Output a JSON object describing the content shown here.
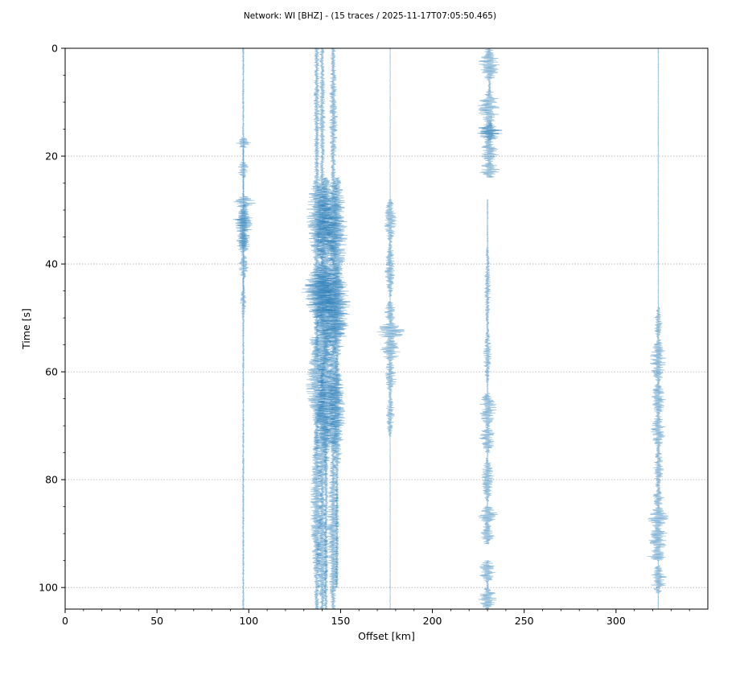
{
  "figure": {
    "title": "Network: WI [BHZ] - (15 traces / 2025-11-17T07:05:50.465)"
  },
  "chart_data": {
    "type": "seismic_record_section",
    "title": "Network: WI [BHZ] - (15 traces / 2025-11-17T07:05:50.465)",
    "xlabel": "Offset [km]",
    "ylabel": "Time [s]",
    "xlim": [
      0,
      350
    ],
    "ylim": [
      104,
      0
    ],
    "y_inverted": true,
    "grid": "horizontal-dotted",
    "x_ticks": [
      0,
      50,
      100,
      150,
      200,
      250,
      300
    ],
    "y_ticks": [
      0,
      20,
      40,
      60,
      80,
      100
    ],
    "trace_color": "#1f77b4",
    "dense_color": "#0b5f8f",
    "traces": [
      {
        "offset": 97,
        "start": 0,
        "end": 104,
        "amp": 0.4,
        "bursts": [
          [
            16.5,
            0.55,
            3.5,
            2
          ],
          [
            21,
            0.5,
            3,
            3
          ],
          [
            27.5,
            1,
            6,
            2
          ],
          [
            30,
            0.9,
            5,
            4
          ],
          [
            34,
            0.6,
            3.5,
            4
          ],
          [
            38,
            0.4,
            2.5,
            5
          ],
          [
            44,
            0.25,
            1.5,
            6
          ]
        ]
      },
      {
        "offset": 97.2,
        "start": 17,
        "end": 48,
        "amp": 0.0,
        "bursts": [
          [
            29,
            0.6,
            4,
            8
          ]
        ]
      },
      {
        "offset": 137,
        "start": 0,
        "end": 104,
        "amp": 1.2,
        "bursts": [
          [
            0,
            0.4,
            1.5,
            24
          ],
          [
            24,
            1.4,
            5,
            15
          ],
          [
            40,
            2.2,
            7,
            10
          ],
          [
            55,
            1.1,
            5,
            15
          ],
          [
            70,
            0.6,
            3,
            30
          ]
        ]
      },
      {
        "offset": 140,
        "start": 0,
        "end": 104,
        "amp": 1.2,
        "bursts": [
          [
            0,
            0.5,
            1.5,
            24
          ],
          [
            24,
            1.3,
            5,
            15
          ],
          [
            40,
            2.3,
            8,
            10
          ],
          [
            50,
            1.5,
            6,
            10
          ],
          [
            62,
            0.9,
            4,
            20
          ],
          [
            82,
            0.6,
            3,
            22
          ]
        ]
      },
      {
        "offset": 142,
        "start": 24,
        "end": 104,
        "amp": 1.0,
        "bursts": [
          [
            24,
            1.2,
            5,
            20
          ],
          [
            40,
            2.0,
            7,
            15
          ],
          [
            55,
            1.2,
            5,
            20
          ]
        ]
      },
      {
        "offset": 146,
        "start": 0,
        "end": 104,
        "amp": 1.2,
        "bursts": [
          [
            0,
            0.6,
            2,
            25
          ],
          [
            25,
            1.3,
            5,
            15
          ],
          [
            40,
            2.0,
            8,
            15
          ],
          [
            55,
            1.1,
            5,
            20
          ],
          [
            75,
            0.7,
            3,
            29
          ]
        ]
      },
      {
        "offset": 148,
        "start": 24,
        "end": 100,
        "amp": 0.9,
        "bursts": [
          [
            24,
            1.1,
            5,
            20
          ],
          [
            42,
            1.7,
            6,
            15
          ],
          [
            58,
            0.9,
            4,
            20
          ]
        ]
      },
      {
        "offset": 177,
        "start": 0,
        "end": 104,
        "amp": 0.15,
        "bursts": [
          [
            28,
            0.6,
            3,
            8
          ],
          [
            36,
            0.4,
            2.5,
            10
          ],
          [
            47,
            0.6,
            3,
            4
          ],
          [
            51,
            1.2,
            7,
            3
          ],
          [
            54,
            0.8,
            5,
            4
          ],
          [
            58,
            0.5,
            3,
            6
          ],
          [
            64,
            0.3,
            2,
            8
          ]
        ]
      },
      {
        "offset": 231,
        "start": 0,
        "end": 24,
        "amp": 0.8,
        "bursts": [
          [
            0,
            1.0,
            5,
            6
          ],
          [
            8,
            1.2,
            5.5,
            6
          ],
          [
            14,
            1.6,
            7,
            3
          ],
          [
            17,
            1.1,
            5,
            4
          ],
          [
            21,
            1.0,
            5,
            3
          ]
        ]
      },
      {
        "offset": 231.5,
        "start": 13.5,
        "end": 17,
        "amp": 0.0,
        "bursts": [
          [
            14,
            2.4,
            5,
            3
          ]
        ]
      },
      {
        "offset": 230,
        "start": 28,
        "end": 92,
        "amp": 0.3,
        "bursts": [
          [
            37,
            0.4,
            1.5,
            15
          ],
          [
            52,
            0.4,
            2,
            10
          ],
          [
            64,
            0.8,
            4.5,
            6
          ],
          [
            70,
            0.7,
            4,
            5
          ],
          [
            76,
            0.5,
            3,
            8
          ],
          [
            85,
            0.8,
            5,
            3
          ],
          [
            88,
            0.6,
            3.5,
            4
          ]
        ]
      },
      {
        "offset": 230,
        "start": 95,
        "end": 104,
        "amp": 0.6,
        "bursts": [
          [
            95,
            0.9,
            4.5,
            4
          ],
          [
            100,
            1.0,
            4.5,
            4
          ]
        ]
      },
      {
        "offset": 323,
        "start": 0,
        "end": 104,
        "amp": 0.2,
        "bursts": [
          [
            48,
            0.5,
            2,
            6
          ],
          [
            54,
            0.8,
            4,
            8
          ],
          [
            62,
            0.7,
            3.5,
            6
          ],
          [
            68,
            0.7,
            3.5,
            6
          ],
          [
            74,
            0.4,
            2.5,
            8
          ],
          [
            82,
            0.5,
            3,
            3
          ],
          [
            85,
            0.9,
            5,
            4
          ],
          [
            89,
            1.0,
            5.5,
            4
          ],
          [
            93,
            1.1,
            6,
            2
          ],
          [
            96,
            0.7,
            4,
            5
          ]
        ]
      }
    ]
  }
}
